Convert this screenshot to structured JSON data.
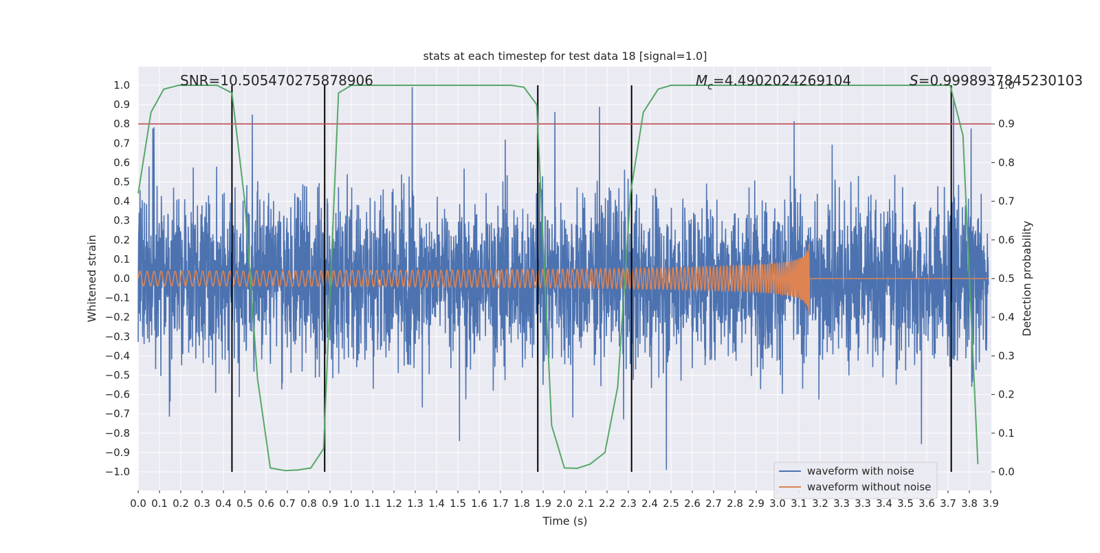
{
  "chart_data": {
    "type": "line",
    "title": "stats at each timestep for test data 18 [signal=1.0]",
    "xlabel": "Time (s)",
    "ylabel_left": "Whitened strain",
    "ylabel_right": "Detection probability",
    "xlim": [
      0.0,
      4.0
    ],
    "ylim_left": [
      -1.1,
      1.1
    ],
    "ylim_right": [
      -0.05,
      1.05
    ],
    "grid": true,
    "legend_placement": "lower-right",
    "x_ticks": [
      "0.0",
      "0.1",
      "0.2",
      "0.3",
      "0.4",
      "0.5",
      "0.6",
      "0.7",
      "0.8",
      "0.9",
      "1.0",
      "1.1",
      "1.2",
      "1.3",
      "1.4",
      "1.5",
      "1.6",
      "1.7",
      "1.8",
      "1.9",
      "2.0",
      "2.1",
      "2.2",
      "2.3",
      "2.4",
      "2.5",
      "2.6",
      "2.7",
      "2.8",
      "2.9",
      "3.0",
      "3.1",
      "3.2",
      "3.3",
      "3.3",
      "3.4",
      "3.5",
      "3.6",
      "3.7",
      "3.8",
      "3.9"
    ],
    "y_ticks_left": [
      "1.0",
      "0.9",
      "0.8",
      "0.7",
      "0.6",
      "0.5",
      "0.4",
      "0.3",
      "0.2",
      "0.1",
      "0.0",
      "−0.1",
      "−0.2",
      "−0.3",
      "−0.4",
      "−0.5",
      "−0.6",
      "−0.7",
      "−0.8",
      "−0.9",
      "−1.0"
    ],
    "y_ticks_right": [
      "1.0",
      "0.9",
      "0.8",
      "0.7",
      "0.6",
      "0.5",
      "0.4",
      "0.3",
      "0.2",
      "0.1",
      "0.0"
    ],
    "annotations": {
      "snr": "SNR=10.505470275878906",
      "mc_symbol": "M",
      "mc_sub": "c",
      "mc_value": "=4.4902024269104",
      "s_symbol": "S",
      "s_value": "=0.9998937845230103"
    },
    "threshold": {
      "value_right_axis": 0.9,
      "color": "#c44e52"
    },
    "vertical_markers_s": [
      0.44,
      0.875,
      1.875,
      2.315,
      3.815
    ],
    "series": [
      {
        "name": "waveform with noise",
        "color": "#4c72b0",
        "description_range": [
          -1.0,
          1.0
        ]
      },
      {
        "name": "waveform without noise",
        "color": "#dd8452",
        "chirp_end_s": 3.15,
        "peak_amplitude": 0.25
      },
      {
        "color": "#55a868",
        "x": [
          0.0,
          0.06,
          0.12,
          0.19,
          0.25,
          0.31,
          0.37,
          0.44,
          0.5,
          0.56,
          0.62,
          0.69,
          0.75,
          0.81,
          0.87,
          0.94,
          1.0,
          1.06,
          1.12,
          1.19,
          1.25,
          1.31,
          1.37,
          1.44,
          1.5,
          1.56,
          1.62,
          1.69,
          1.75,
          1.81,
          1.87,
          1.94,
          2.0,
          2.06,
          2.12,
          2.19,
          2.25,
          2.31,
          2.37,
          2.44,
          2.5,
          2.56,
          2.62,
          2.69,
          2.75,
          2.81,
          2.87,
          2.94,
          3.0,
          3.06,
          3.12,
          3.19,
          3.25,
          3.31,
          3.37,
          3.44,
          3.5,
          3.56,
          3.62,
          3.69,
          3.75,
          3.81,
          3.87,
          3.94
        ],
        "y": [
          0.72,
          0.93,
          0.99,
          1.0,
          1.0,
          1.0,
          1.0,
          0.98,
          0.7,
          0.24,
          0.01,
          0.003,
          0.005,
          0.01,
          0.06,
          0.98,
          1.0,
          1.0,
          1.0,
          1.0,
          1.0,
          1.0,
          1.0,
          1.0,
          1.0,
          1.0,
          1.0,
          1.0,
          1.0,
          0.995,
          0.95,
          0.12,
          0.01,
          0.009,
          0.02,
          0.05,
          0.22,
          0.72,
          0.93,
          0.99,
          1.0,
          1.0,
          1.0,
          1.0,
          1.0,
          1.0,
          1.0,
          1.0,
          1.0,
          1.0,
          1.0,
          1.0,
          1.0,
          1.0,
          1.0,
          1.0,
          1.0,
          1.0,
          1.0,
          1.0,
          1.0,
          1.0,
          0.87,
          0.02
        ]
      }
    ]
  }
}
